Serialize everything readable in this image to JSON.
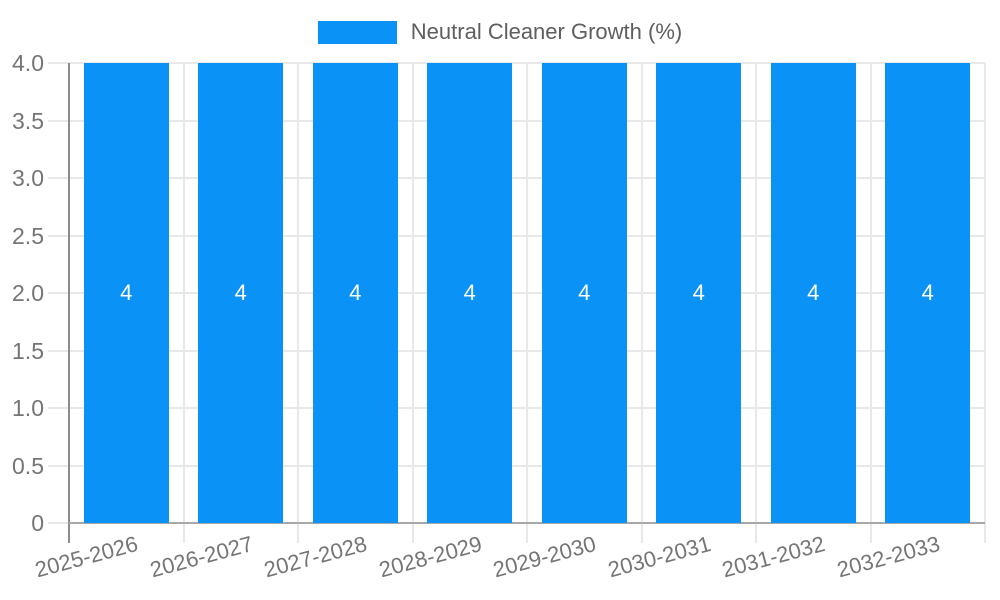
{
  "chart_data": {
    "type": "bar",
    "title": "",
    "xlabel": "",
    "ylabel": "",
    "legend": {
      "label": "Neutral Cleaner Growth (%)",
      "position": "top-center"
    },
    "categories": [
      "2025-2026",
      "2026-2027",
      "2027-2028",
      "2028-2029",
      "2029-2030",
      "2030-2031",
      "2031-2032",
      "2032-2033"
    ],
    "series": [
      {
        "name": "Neutral Cleaner Growth (%)",
        "values": [
          4,
          4,
          4,
          4,
          4,
          4,
          4,
          4
        ],
        "color": "#0a92f7"
      }
    ],
    "value_labels": [
      "4",
      "4",
      "4",
      "4",
      "4",
      "4",
      "4",
      "4"
    ],
    "ylim": [
      0,
      4
    ],
    "yticks": [
      "0",
      "0.5",
      "1.0",
      "1.5",
      "2.0",
      "2.5",
      "3.0",
      "3.5",
      "4.0"
    ],
    "grid": true,
    "x_label_rotation_deg": -15
  },
  "colors": {
    "background": "#ffffff",
    "bar": "#0a92f7",
    "grid": "#e8e8e8",
    "axis_line_y": "#8c8c8c",
    "axis_line_x": "#a8a8a8",
    "axis_text": "#757575",
    "legend_text": "#5e5e5e",
    "bar_value_text": "#ffffff"
  }
}
